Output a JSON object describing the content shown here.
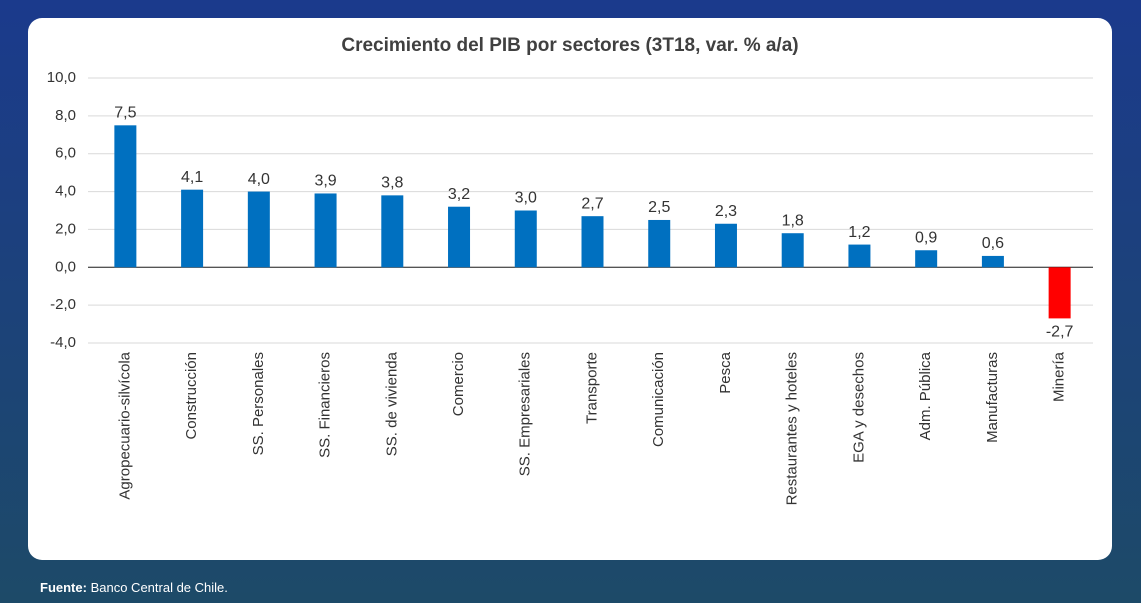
{
  "chart_data": {
    "type": "bar",
    "title": "Crecimiento del PIB por sectores (3T18, var. % a/a)",
    "categories": [
      "Agropecuario-silvícola",
      "Construcción",
      "SS. Personales",
      "SS. Financieros",
      "SS. de vivienda",
      "Comercio",
      "SS. Empresariales",
      "Transporte",
      "Comunicación",
      "Pesca",
      "Restaurantes y hoteles",
      "EGA y desechos",
      "Adm. Pública",
      "Manufacturas",
      "Minería"
    ],
    "values": [
      7.5,
      4.1,
      4.0,
      3.9,
      3.8,
      3.2,
      3.0,
      2.7,
      2.5,
      2.3,
      1.8,
      1.2,
      0.9,
      0.6,
      -2.7
    ],
    "value_labels": [
      "7,5",
      "4,1",
      "4,0",
      "3,9",
      "3,8",
      "3,2",
      "3,0",
      "2,7",
      "2,5",
      "2,3",
      "1,8",
      "1,2",
      "0,9",
      "0,6",
      "-2,7"
    ],
    "colors": [
      "#0070c0",
      "#0070c0",
      "#0070c0",
      "#0070c0",
      "#0070c0",
      "#0070c0",
      "#0070c0",
      "#0070c0",
      "#0070c0",
      "#0070c0",
      "#0070c0",
      "#0070c0",
      "#0070c0",
      "#0070c0",
      "#ff0000"
    ],
    "ylim": [
      -4,
      10
    ],
    "yticks": [
      {
        "value": -4,
        "label": "-4,0"
      },
      {
        "value": -2,
        "label": "-2,0"
      },
      {
        "value": 0,
        "label": "0,0"
      },
      {
        "value": 2,
        "label": "2,0"
      },
      {
        "value": 4,
        "label": "4,0"
      },
      {
        "value": 6,
        "label": "6,0"
      },
      {
        "value": 8,
        "label": "8,0"
      },
      {
        "value": 10,
        "label": "10,0"
      }
    ],
    "grid": true,
    "source_label": "Fuente:",
    "source": "Banco Central de Chile."
  }
}
